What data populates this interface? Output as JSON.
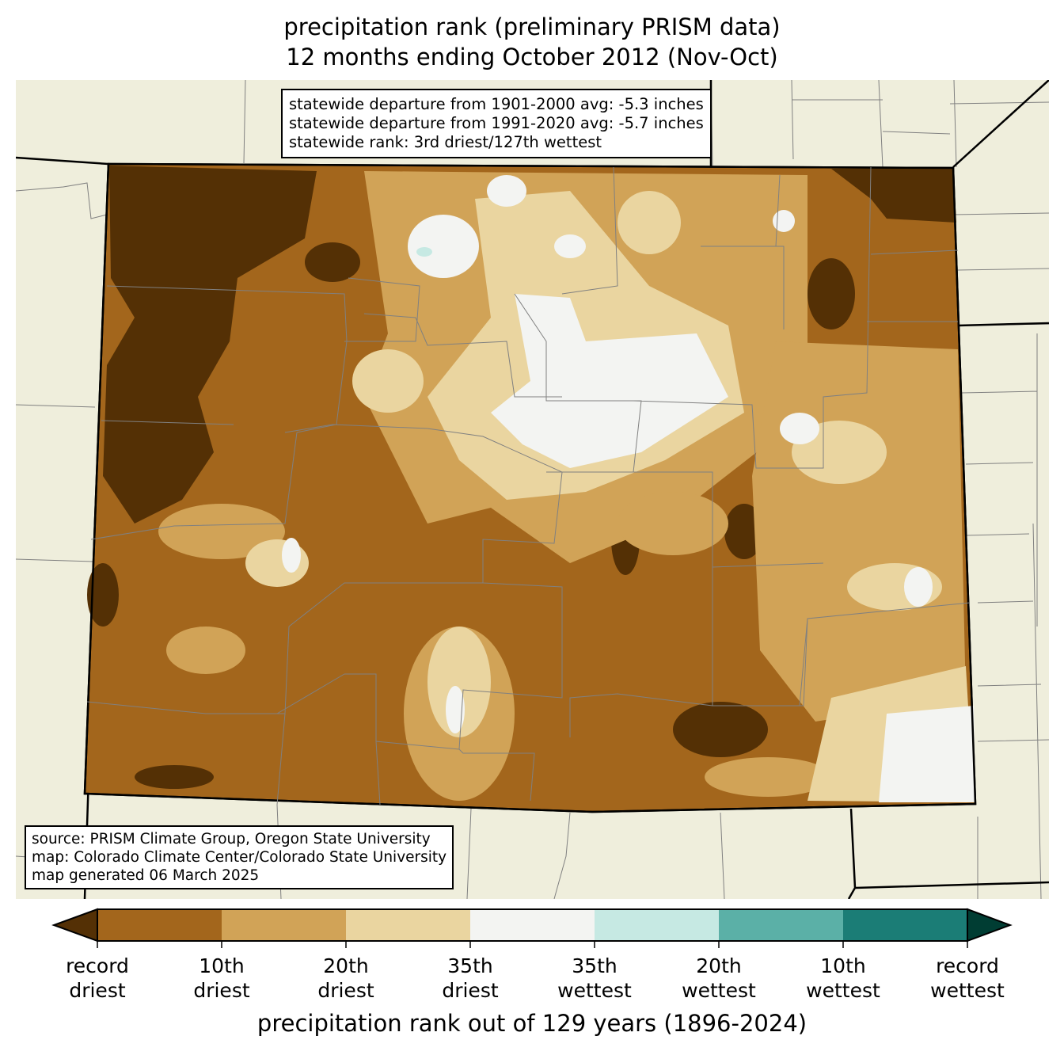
{
  "title": {
    "line1": "precipitation rank (preliminary PRISM data)",
    "line2": "12 months ending October 2012 (Nov-Oct)"
  },
  "stats_box": {
    "line1": "statewide departure from 1901-2000 avg: -5.3 inches",
    "line2": "statewide departure from 1991-2020 avg: -5.7 inches",
    "line3": "statewide rank: 3rd driest/127th wettest"
  },
  "source_box": {
    "line1": "source: PRISM Climate Group, Oregon State University",
    "line2": "map: Colorado Climate Center/Colorado State University",
    "line3": "map generated 06 March 2025"
  },
  "colorbar": {
    "title": "precipitation rank out of 129 years (1896-2024)",
    "under_color": "#543005",
    "over_color": "#003d33",
    "colors": [
      "#a3661c",
      "#d1a357",
      "#ead5a0",
      "#f3f4f2",
      "#c6e9e3",
      "#5bb0a7",
      "#1b7d76"
    ],
    "ticks": [
      {
        "line1": "record",
        "line2": "driest"
      },
      {
        "line1": "10th",
        "line2": "driest"
      },
      {
        "line1": "20th",
        "line2": "driest"
      },
      {
        "line1": "35th",
        "line2": "driest"
      },
      {
        "line1": "35th",
        "line2": "wettest"
      },
      {
        "line1": "20th",
        "line2": "wettest"
      },
      {
        "line1": "10th",
        "line2": "wettest"
      },
      {
        "line1": "record",
        "line2": "wettest"
      }
    ]
  },
  "map_colors": {
    "land": "#efeedc",
    "border": "#808080"
  }
}
